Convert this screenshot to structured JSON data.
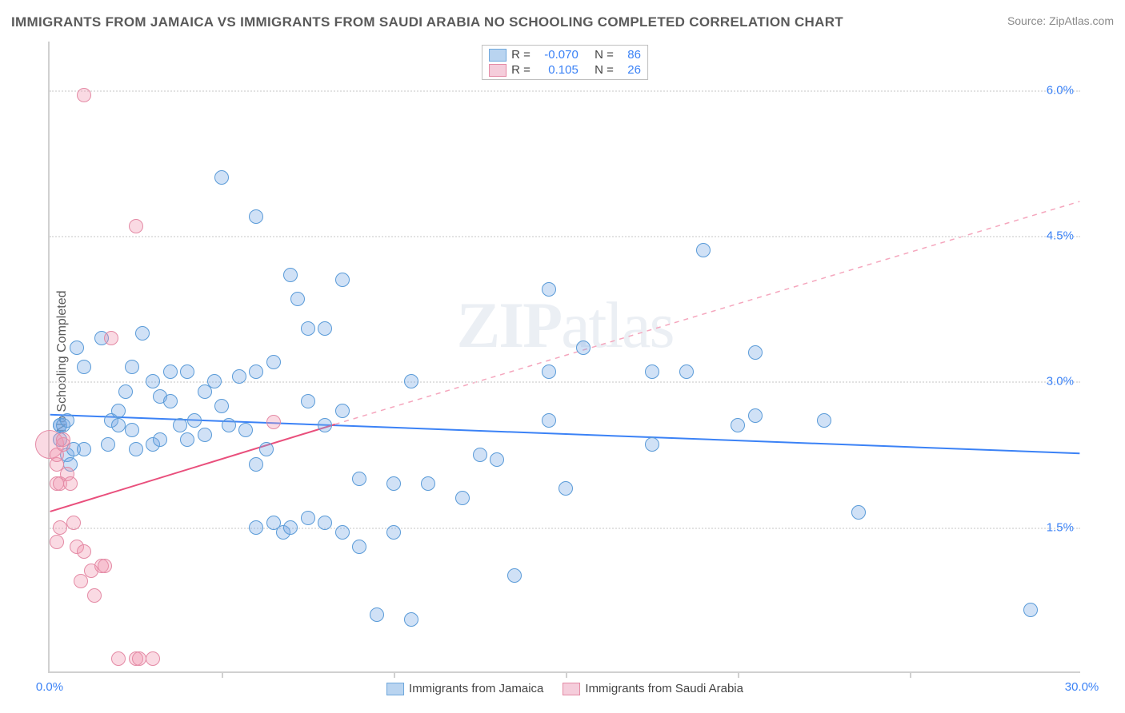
{
  "title": "IMMIGRANTS FROM JAMAICA VS IMMIGRANTS FROM SAUDI ARABIA NO SCHOOLING COMPLETED CORRELATION CHART",
  "source_label": "Source: ZipAtlas.com",
  "ylabel": "No Schooling Completed",
  "watermark_a": "ZIP",
  "watermark_b": "atlas",
  "chart": {
    "type": "scatter",
    "background_color": "#ffffff",
    "grid_color": "#e2e2e2",
    "axis_color": "#d0d0d0",
    "xlim": [
      0,
      30
    ],
    "ylim": [
      0,
      6.5
    ],
    "y_ticks": [
      {
        "v": 1.5,
        "label": "1.5%"
      },
      {
        "v": 3.0,
        "label": "3.0%"
      },
      {
        "v": 4.5,
        "label": "4.5%"
      },
      {
        "v": 6.0,
        "label": "6.0%"
      }
    ],
    "x_ticks_minor": [
      5,
      10,
      15,
      20,
      25
    ],
    "x_ticks_label": [
      {
        "v": 0,
        "label": "0.0%"
      },
      {
        "v": 30,
        "label": "30.0%"
      }
    ],
    "marker_radius": 9,
    "marker_stroke_width": 1
  },
  "series": [
    {
      "id": "jamaica",
      "label": "Immigrants from Jamaica",
      "fill": "rgba(120,170,230,0.35)",
      "stroke": "#5a9bd8",
      "swatch_fill": "#b9d4f0",
      "swatch_stroke": "#6fa8dc",
      "r": "-0.070",
      "n": "86",
      "trend": {
        "y0": 2.65,
        "y1": 2.25,
        "color": "#3b82f6",
        "width": 2,
        "dash": ""
      },
      "points": [
        [
          0.3,
          2.4
        ],
        [
          0.3,
          2.55
        ],
        [
          0.3,
          2.55
        ],
        [
          0.4,
          2.55
        ],
        [
          0.5,
          2.25
        ],
        [
          0.5,
          2.6
        ],
        [
          0.6,
          2.15
        ],
        [
          0.7,
          2.3
        ],
        [
          0.8,
          3.35
        ],
        [
          1.0,
          2.3
        ],
        [
          1.0,
          3.15
        ],
        [
          1.5,
          3.45
        ],
        [
          1.7,
          2.35
        ],
        [
          1.8,
          2.6
        ],
        [
          2.0,
          2.55
        ],
        [
          2.0,
          2.7
        ],
        [
          2.2,
          2.9
        ],
        [
          2.4,
          2.5
        ],
        [
          2.4,
          3.15
        ],
        [
          2.5,
          2.3
        ],
        [
          2.7,
          3.5
        ],
        [
          3.0,
          2.35
        ],
        [
          3.0,
          3.0
        ],
        [
          3.2,
          2.4
        ],
        [
          3.2,
          2.85
        ],
        [
          3.5,
          2.8
        ],
        [
          3.5,
          3.1
        ],
        [
          3.8,
          2.55
        ],
        [
          4.0,
          2.4
        ],
        [
          4.0,
          3.1
        ],
        [
          4.2,
          2.6
        ],
        [
          4.5,
          2.45
        ],
        [
          4.5,
          2.9
        ],
        [
          4.8,
          3.0
        ],
        [
          5.0,
          5.1
        ],
        [
          5.2,
          2.55
        ],
        [
          5.5,
          3.05
        ],
        [
          5.7,
          2.5
        ],
        [
          6.0,
          1.5
        ],
        [
          6.0,
          2.15
        ],
        [
          6.0,
          4.7
        ],
        [
          6.3,
          2.3
        ],
        [
          6.5,
          1.55
        ],
        [
          6.5,
          3.2
        ],
        [
          6.8,
          1.45
        ],
        [
          7.0,
          1.5
        ],
        [
          7.0,
          4.1
        ],
        [
          7.2,
          3.85
        ],
        [
          7.5,
          1.6
        ],
        [
          7.5,
          2.8
        ],
        [
          7.5,
          3.55
        ],
        [
          8.0,
          1.55
        ],
        [
          8.0,
          2.55
        ],
        [
          8.0,
          3.55
        ],
        [
          8.5,
          1.45
        ],
        [
          8.5,
          4.05
        ],
        [
          8.5,
          2.7
        ],
        [
          9.0,
          1.3
        ],
        [
          9.0,
          2.0
        ],
        [
          9.5,
          0.6
        ],
        [
          10.0,
          1.95
        ],
        [
          10.0,
          1.45
        ],
        [
          10.5,
          0.55
        ],
        [
          10.5,
          3.0
        ],
        [
          11.0,
          1.95
        ],
        [
          12.0,
          1.8
        ],
        [
          12.5,
          2.25
        ],
        [
          13.0,
          2.2
        ],
        [
          13.5,
          1.0
        ],
        [
          14.5,
          3.1
        ],
        [
          14.5,
          2.6
        ],
        [
          14.5,
          3.95
        ],
        [
          15.0,
          1.9
        ],
        [
          15.5,
          3.35
        ],
        [
          17.5,
          2.35
        ],
        [
          17.5,
          3.1
        ],
        [
          18.5,
          3.1
        ],
        [
          19.0,
          4.35
        ],
        [
          20.0,
          2.55
        ],
        [
          20.5,
          3.3
        ],
        [
          20.5,
          2.65
        ],
        [
          22.5,
          2.6
        ],
        [
          23.5,
          1.65
        ],
        [
          28.5,
          0.65
        ],
        [
          5.0,
          2.75
        ],
        [
          6.0,
          3.1
        ]
      ]
    },
    {
      "id": "saudi",
      "label": "Immigrants from Saudi Arabia",
      "fill": "rgba(240,150,175,0.35)",
      "stroke": "#e48aa5",
      "swatch_fill": "#f5cddb",
      "swatch_stroke": "#e48aa5",
      "r": "0.105",
      "n": "26",
      "trend_solid": {
        "x0": 0,
        "y0": 1.65,
        "x1": 8.3,
        "y1": 2.55,
        "color": "#e94f7c",
        "width": 2
      },
      "trend_dash": {
        "x0": 8.3,
        "y0": 2.55,
        "x1": 30,
        "y1": 4.85,
        "color": "#f5a6bd",
        "width": 1.5,
        "dash": "6 6"
      },
      "points": [
        [
          0.2,
          1.35
        ],
        [
          0.2,
          1.95
        ],
        [
          0.2,
          2.15
        ],
        [
          0.2,
          2.25
        ],
        [
          0.3,
          1.5
        ],
        [
          0.3,
          1.95
        ],
        [
          0.4,
          2.35
        ],
        [
          0.4,
          2.4
        ],
        [
          0.5,
          2.05
        ],
        [
          0.6,
          1.95
        ],
        [
          0.7,
          1.55
        ],
        [
          0.8,
          1.3
        ],
        [
          0.9,
          0.95
        ],
        [
          1.0,
          1.25
        ],
        [
          1.0,
          5.95
        ],
        [
          1.2,
          1.05
        ],
        [
          1.3,
          0.8
        ],
        [
          1.5,
          1.1
        ],
        [
          1.6,
          1.1
        ],
        [
          1.8,
          3.45
        ],
        [
          2.0,
          0.15
        ],
        [
          2.5,
          4.6
        ],
        [
          2.5,
          0.15
        ],
        [
          2.6,
          0.15
        ],
        [
          3.0,
          0.15
        ],
        [
          6.5,
          2.58
        ]
      ],
      "big_point": {
        "x": 0.0,
        "y": 2.35,
        "r": 18
      }
    }
  ],
  "legend_series": [
    {
      "ref": "jamaica"
    },
    {
      "ref": "saudi"
    }
  ]
}
